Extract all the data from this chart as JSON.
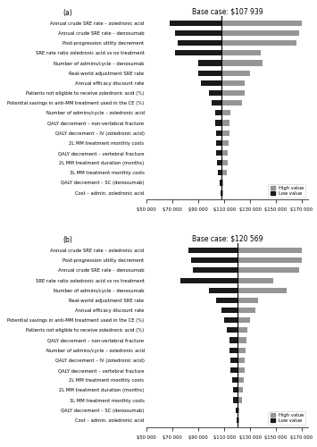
{
  "panel_a": {
    "base_case": 107939,
    "title": "Base case: $107 939",
    "xlim": [
      50000,
      175000
    ],
    "xticks": [
      50000,
      70000,
      90000,
      110000,
      130000,
      150000,
      170000
    ],
    "xtick_labels": [
      "$50 000",
      "$70 000",
      "$90 000",
      "$110 000",
      "$130 000",
      "$150 000",
      "$170 000"
    ],
    "variables": [
      "Annual crude SRE rate – zoledronic acid",
      "Annual crude SRE rate – denosumab",
      "Post-progression utility decrement",
      "SRE rate ratio zoledronic acid vs no treatment",
      "Number of admins/cycle – denosumab",
      "Real-world adjustment SRE rate",
      "Annual efficacy discount rate",
      "Patients not eligible to receive zoledronic acid (%)",
      "Potential savings in anti-MM treatment used in the CE (%)",
      "Number of admins/cycle – zoledronic acid",
      "QALY decrement – non-vertebral fracture",
      "QALY decrement – IV (zoledronic acid)",
      "2L MM treatment monthly costs",
      "QALY decrement – vertebral fracture",
      "2L MM treatment duration (months)",
      "3L MM treatment monthly costs",
      "QALY decrement – SC (denosumab)",
      "Cost – admin. zoledronic acid"
    ],
    "high_values": [
      170000,
      168000,
      166000,
      138000,
      140000,
      130000,
      126000,
      126000,
      124000,
      115000,
      114000,
      114000,
      113500,
      113000,
      112500,
      112000,
      109500,
      109000
    ],
    "low_values": [
      68000,
      72000,
      74000,
      72000,
      90000,
      90000,
      92000,
      98000,
      100000,
      103000,
      103000,
      103500,
      104000,
      104000,
      104500,
      105000,
      106500,
      107000
    ]
  },
  "panel_b": {
    "base_case": 120569,
    "title": "Base case: $120 569",
    "xlim": [
      50000,
      175000
    ],
    "xticks": [
      50000,
      70000,
      90000,
      110000,
      130000,
      150000,
      170000
    ],
    "xtick_labels": [
      "$50 000",
      "$70 000",
      "$90 000",
      "$110 000",
      "$130 000",
      "$150 000",
      "$170 000"
    ],
    "variables": [
      "Annual crude SRE rate – zoledronic acid",
      "Post-progression utility decrement",
      "Annual crude SRE rate – denosumab",
      "SRE rate ratio zoledronic acid vs no treatment",
      "Number of admins/cycle – denosumab",
      "Real-world adjustment SRE rate",
      "Annual efficacy discount rate",
      "Potential savings in anti-MM treatment used in the CE (%)",
      "Patients not eligible to receive zoledronic acid (%)",
      "QALY decrement – non-vertebral fracture",
      "Number of admins/cycle – zoledronic acid",
      "QALY decrement – IV (zoledronic acid)",
      "QALY decrement – vertebral fracture",
      "2L MM treatment monthly costs",
      "2L MM treatment duration (months)",
      "3L MM treatment monthly costs",
      "QALY decrement – SC (denosumab)",
      "Cost – admin. zoledronic acid"
    ],
    "high_values": [
      170000,
      170000,
      168000,
      148000,
      158000,
      136000,
      134000,
      130000,
      128000,
      127000,
      126500,
      126000,
      125500,
      125000,
      124500,
      123500,
      122000,
      121500
    ],
    "low_values": [
      82000,
      84000,
      86000,
      76000,
      98000,
      104000,
      108000,
      110000,
      112000,
      114000,
      114000,
      115000,
      115000,
      116000,
      116500,
      117000,
      119000,
      119500
    ]
  },
  "colors": {
    "high": "#959595",
    "low": "#1a1a1a"
  }
}
